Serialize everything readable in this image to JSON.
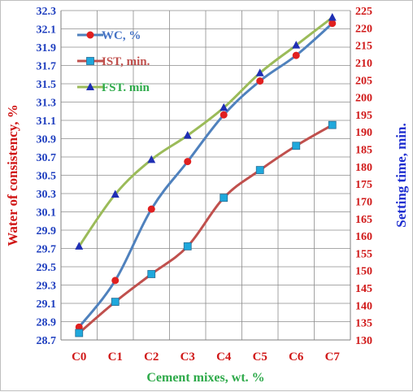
{
  "chart_data": {
    "type": "line",
    "categories": [
      "C0",
      "C1",
      "C2",
      "C3",
      "C4",
      "C5",
      "C6",
      "C7"
    ],
    "xlabel": "Cement mixes, wt. %",
    "ylabel_left": "Water of consistency, %",
    "ylabel_right": "Setting time, min.",
    "y_left": {
      "min": 28.7,
      "max": 32.3,
      "ticks": [
        "28.7",
        "28.9",
        "29.1",
        "29.3",
        "29.5",
        "29.7",
        "29.9",
        "30.1",
        "30.3",
        "30.5",
        "30.7",
        "30.9",
        "31.1",
        "31.3",
        "31.5",
        "31.7",
        "31.9",
        "32.1",
        "32.3"
      ]
    },
    "y_right": {
      "min": 130,
      "max": 225,
      "ticks": [
        "130",
        "135",
        "140",
        "145",
        "150",
        "155",
        "160",
        "165",
        "170",
        "175",
        "180",
        "185",
        "190",
        "195",
        "200",
        "205",
        "210",
        "215",
        "220",
        "225"
      ]
    },
    "grid": true,
    "legend_position": "top-left",
    "series": [
      {
        "name": "WC, %",
        "axis": "left",
        "color": "#4f81bd",
        "marker": "circle",
        "marker_color": "#e02020",
        "label_color": "#4472c4",
        "values": [
          28.84,
          29.35,
          30.13,
          30.65,
          31.16,
          31.53,
          31.81,
          32.16
        ]
      },
      {
        "name": "IST, min.",
        "axis": "right",
        "color": "#c0504d",
        "marker": "square",
        "marker_color": "#1fa8dc",
        "label_color": "#c0504d",
        "values": [
          132,
          141,
          149,
          157,
          171,
          179,
          186,
          192
        ]
      },
      {
        "name": "FST. min",
        "axis": "right",
        "color": "#9bbb59",
        "marker": "triangle",
        "marker_color": "#1f2fb4",
        "label_color": "#2eaa4a",
        "values": [
          157,
          172,
          182,
          189,
          197,
          207,
          215,
          223
        ]
      }
    ],
    "colors": {
      "left_axis_text": "#1f3fbf",
      "right_axis_text": "#d01818",
      "x_tick_text": "#d01818",
      "xlabel_text": "#2eaa4a",
      "ylabel_left_text": "#d01818",
      "ylabel_right_text": "#1f2fd0",
      "grid": "#8c8c8c"
    }
  }
}
